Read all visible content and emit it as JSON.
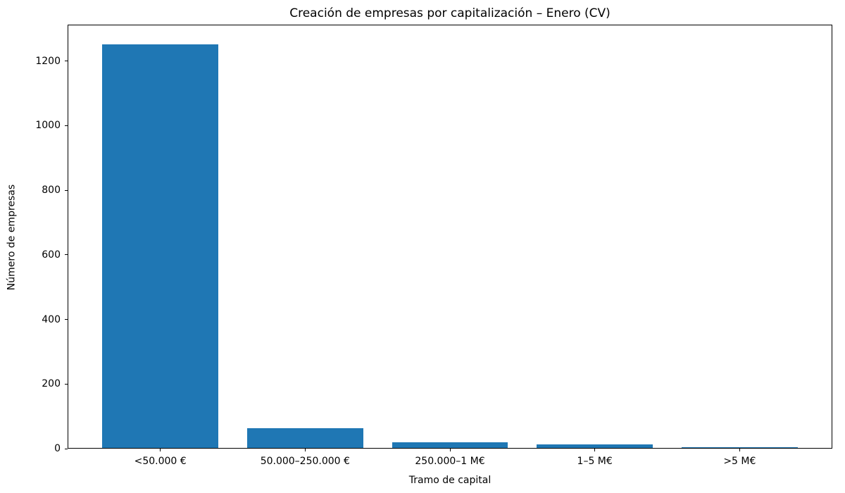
{
  "chart_data": {
    "type": "bar",
    "title": "Creación de empresas por capitalización – Enero (CV)",
    "xlabel": "Tramo de capital",
    "ylabel": "Número de empresas",
    "categories": [
      "<50.000 €",
      "50.000–250.000 €",
      "250.000–1 M€",
      "1–5 M€",
      ">5 M€"
    ],
    "values": [
      1250,
      60,
      18,
      11,
      2
    ],
    "yticks": [
      0,
      200,
      400,
      600,
      800,
      1000,
      1200
    ],
    "ylim": [
      0,
      1312.5
    ],
    "bar_color": "#1f77b4",
    "bar_width_fraction": 0.8,
    "grid": false,
    "legend": null
  }
}
